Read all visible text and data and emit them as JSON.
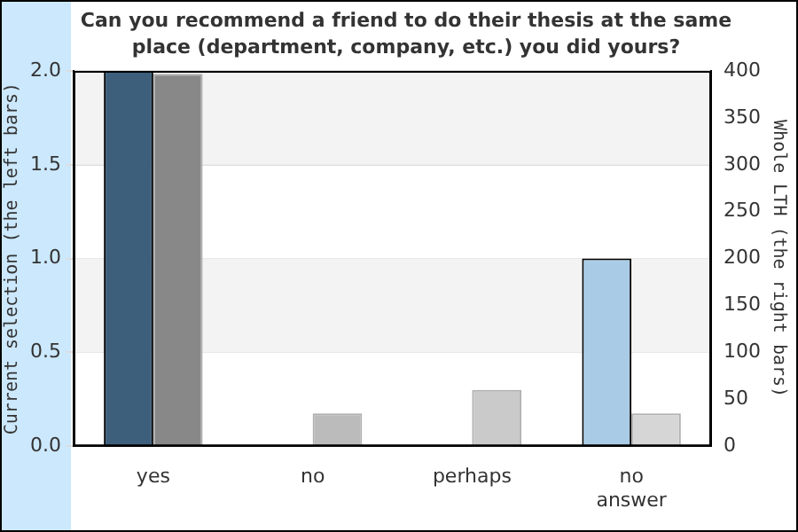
{
  "chart_data": {
    "type": "bar",
    "title": "Can you recommend a friend to do their thesis at the same place (department, company, etc.) you did yours?",
    "ylabel": "Current selection (the left bars)",
    "y2label": "Whole LTH (the right bars)",
    "categories": [
      "yes",
      "no",
      "perhaps",
      "no answer"
    ],
    "series": [
      {
        "colors": [
          "#3d5f7c",
          "#3d5f7c",
          "#3d5f7c",
          "#a9cbe6"
        ],
        "values": [
          2,
          0,
          0,
          1
        ]
      },
      {
        "colors": [
          "#888888",
          "#bbbbbb",
          "#cacaca",
          "#d6d6d6"
        ],
        "values": [
          397,
          35,
          60,
          35
        ],
        "axis": "y2"
      }
    ],
    "ylim": [
      0,
      2
    ],
    "yticks": [
      {
        "value": 0,
        "label": "0.0"
      },
      {
        "value": 0.5,
        "label": "0.5"
      },
      {
        "value": 1,
        "label": "1.0"
      },
      {
        "value": 1.5,
        "label": "1.5"
      },
      {
        "value": 2,
        "label": "2.0"
      }
    ],
    "y2lim": [
      0,
      400
    ],
    "y2ticks": [
      0,
      50,
      100,
      150,
      200,
      250,
      300,
      350,
      400
    ],
    "bands": [
      {
        "axis": "y",
        "from": 0.5,
        "to": 1,
        "color": "#f3f3f3"
      },
      {
        "axis": "y",
        "from": 1.5,
        "to": 2,
        "color": "#f3f3f3"
      }
    ],
    "grid": "y",
    "legend": false
  }
}
